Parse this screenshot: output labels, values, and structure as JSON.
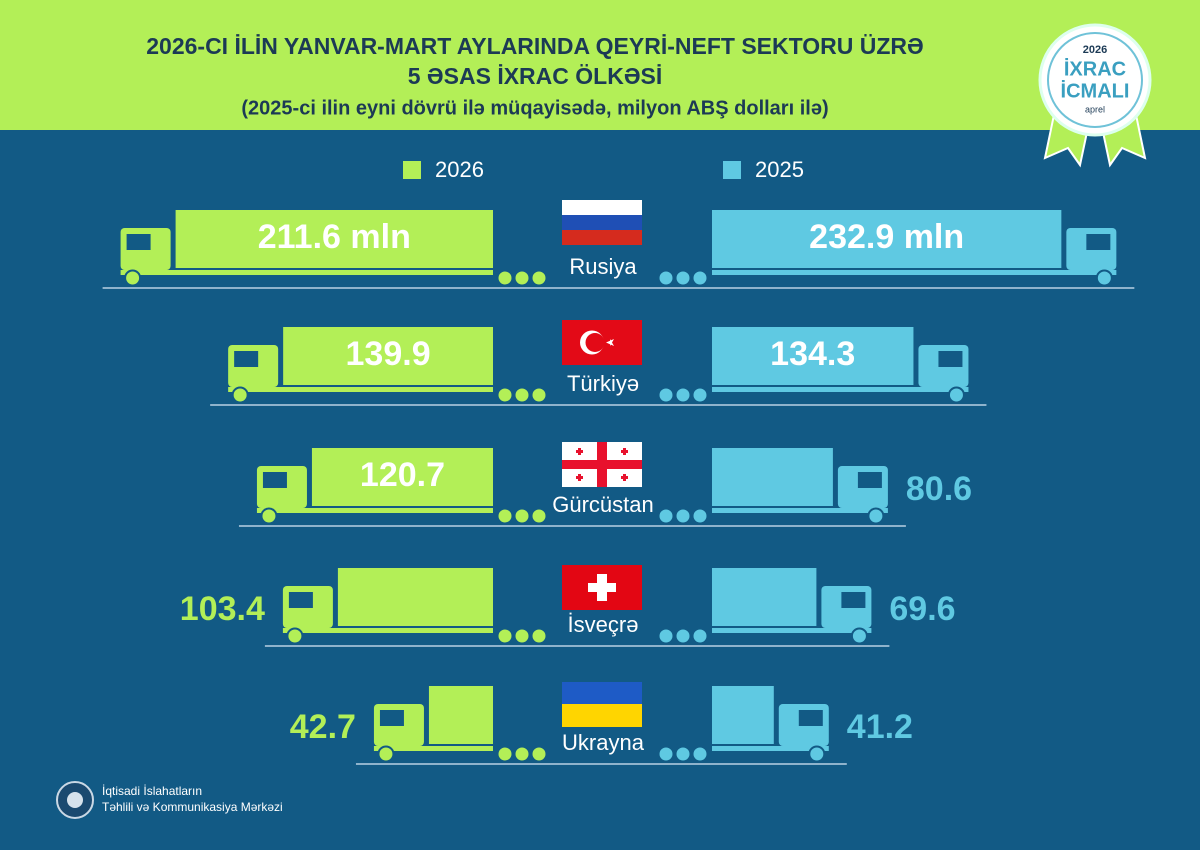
{
  "header": {
    "title": [
      "2026-CI İLİN YANVAR-MART AYLARINDA QEYRİ-NEFT SEKTORU ÜZRƏ",
      "5 ƏSAS İXRAC ÖLKƏSİ"
    ],
    "subtitle": "(2025-ci ilin eyni dövrü ilə müqayisədə, milyon ABŞ dolları ilə)"
  },
  "badge": {
    "year": "2026",
    "lines": [
      "İXRAC",
      "İCMALI"
    ],
    "month": "aprel"
  },
  "chart_data": {
    "type": "bar",
    "categories": [
      "Rusiya",
      "Türkiyə",
      "Gürcüstan",
      "İsveçrə",
      "Ukrayna"
    ],
    "series": [
      {
        "name": "2026",
        "color": "#b3ef57",
        "values": [
          211.6,
          139.9,
          120.7,
          103.4,
          42.7
        ],
        "value_labels": [
          "211.6 mln",
          "139.9",
          "120.7",
          "103.4",
          "42.7"
        ]
      },
      {
        "name": "2025",
        "color": "#5fc9e2",
        "values": [
          232.9,
          134.3,
          80.6,
          69.6,
          41.2
        ],
        "value_labels": [
          "232.9 mln",
          "134.3",
          "80.6",
          "69.6",
          "41.2"
        ]
      }
    ]
  },
  "footer": {
    "org": [
      "İqtisadi İslahatların",
      "Təhlili və Kommunikasiya Mərkəzi"
    ]
  }
}
